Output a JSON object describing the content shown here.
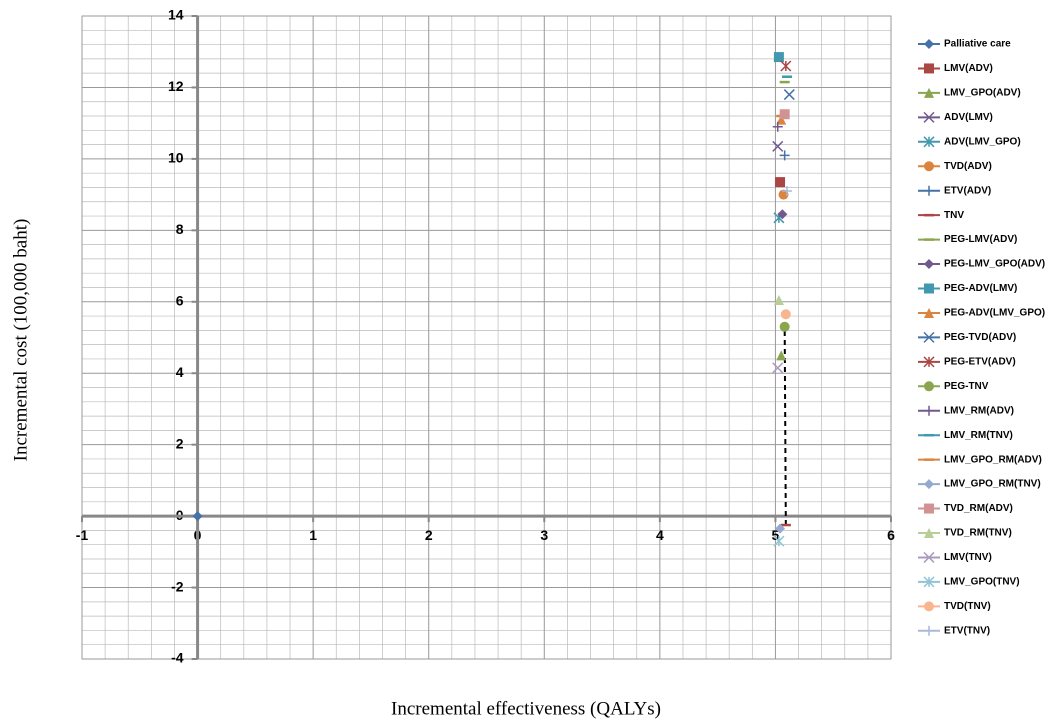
{
  "chart_data": {
    "type": "scatter",
    "x_label": "Incremental effectiveness (QALYs)",
    "y_label": "Incremental cost (100,000 baht)",
    "xlim": [
      -1,
      6
    ],
    "ylim": [
      -4,
      14
    ],
    "xticks": [
      -1,
      0,
      1,
      2,
      3,
      4,
      5,
      6
    ],
    "yticks": [
      -4,
      -2,
      0,
      2,
      4,
      6,
      8,
      10,
      12,
      14
    ],
    "grid": true,
    "legend": "right",
    "frontier": [
      "TNV",
      "PEG-TNV"
    ],
    "series": [
      {
        "name": "Palliative care",
        "color": "#4572A7",
        "marker": "diamond",
        "x": [
          0
        ],
        "values": [
          0
        ]
      },
      {
        "name": "LMV(ADV)",
        "color": "#AA4643",
        "marker": "square",
        "x": [
          5.04
        ],
        "values": [
          9.35
        ]
      },
      {
        "name": "LMV_GPO(ADV)",
        "color": "#89A54E",
        "marker": "triangle",
        "x": [
          5.05
        ],
        "values": [
          4.5
        ]
      },
      {
        "name": "ADV(LMV)",
        "color": "#71588F",
        "marker": "x",
        "x": [
          5.02
        ],
        "values": [
          10.35
        ]
      },
      {
        "name": "ADV(LMV_GPO)",
        "color": "#4198AF",
        "marker": "star",
        "x": [
          5.03
        ],
        "values": [
          8.35
        ]
      },
      {
        "name": "TVD(ADV)",
        "color": "#DB843D",
        "marker": "circle",
        "x": [
          5.07
        ],
        "values": [
          9.0
        ]
      },
      {
        "name": "ETV(ADV)",
        "color": "#4572A7",
        "marker": "plus",
        "x": [
          5.08
        ],
        "values": [
          10.1
        ]
      },
      {
        "name": "TNV",
        "color": "#AA4643",
        "marker": "dash",
        "x": [
          5.09
        ],
        "values": [
          -0.25
        ]
      },
      {
        "name": "PEG-LMV(ADV)",
        "color": "#89A54E",
        "marker": "dash",
        "x": [
          5.08
        ],
        "values": [
          12.15
        ]
      },
      {
        "name": "PEG-LMV_GPO(ADV)",
        "color": "#71588F",
        "marker": "diamond",
        "x": [
          5.06
        ],
        "values": [
          8.45
        ]
      },
      {
        "name": "PEG-ADV(LMV)",
        "color": "#4198AF",
        "marker": "square",
        "x": [
          5.03
        ],
        "values": [
          12.85
        ]
      },
      {
        "name": "PEG-ADV(LMV_GPO)",
        "color": "#DB843D",
        "marker": "triangle",
        "x": [
          5.05
        ],
        "values": [
          11.1
        ]
      },
      {
        "name": "PEG-TVD(ADV)",
        "color": "#4572A7",
        "marker": "x",
        "x": [
          5.12
        ],
        "values": [
          11.8
        ]
      },
      {
        "name": "PEG-ETV(ADV)",
        "color": "#AA4643",
        "marker": "star",
        "x": [
          5.09
        ],
        "values": [
          12.6
        ]
      },
      {
        "name": "PEG-TNV",
        "color": "#89A54E",
        "marker": "circle",
        "x": [
          5.08
        ],
        "values": [
          5.3
        ]
      },
      {
        "name": "LMV_RM(ADV)",
        "color": "#71588F",
        "marker": "plus",
        "x": [
          5.02
        ],
        "values": [
          10.9
        ]
      },
      {
        "name": "LMV_RM(TNV)",
        "color": "#4198AF",
        "marker": "dash",
        "x": [
          5.1
        ],
        "values": [
          12.3
        ]
      },
      {
        "name": "LMV_GPO_RM(ADV)",
        "color": "#DB843D",
        "marker": "dash",
        "x": [
          5.05
        ],
        "values": [
          11.2
        ]
      },
      {
        "name": "LMV_GPO_RM(TNV)",
        "color": "#93A9CF",
        "marker": "diamond",
        "x": [
          5.04
        ],
        "values": [
          -0.35
        ]
      },
      {
        "name": "TVD_RM(ADV)",
        "color": "#D19392",
        "marker": "square",
        "x": [
          5.08
        ],
        "values": [
          11.25
        ]
      },
      {
        "name": "TVD_RM(TNV)",
        "color": "#B9CD96",
        "marker": "triangle",
        "x": [
          5.03
        ],
        "values": [
          6.05
        ]
      },
      {
        "name": "LMV(TNV)",
        "color": "#A99BBD",
        "marker": "x",
        "x": [
          5.02
        ],
        "values": [
          4.15
        ]
      },
      {
        "name": "LMV_GPO(TNV)",
        "color": "#91C3D5",
        "marker": "star",
        "x": [
          5.03
        ],
        "values": [
          -0.7
        ]
      },
      {
        "name": "TVD(TNV)",
        "color": "#F9B590",
        "marker": "circle",
        "x": [
          5.09
        ],
        "values": [
          5.65
        ]
      },
      {
        "name": "ETV(TNV)",
        "color": "#A9B9D9",
        "marker": "plus",
        "x": [
          5.1
        ],
        "values": [
          9.1
        ]
      }
    ]
  }
}
